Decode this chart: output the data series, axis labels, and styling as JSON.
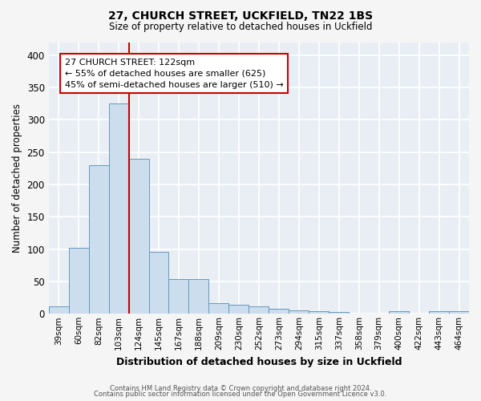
{
  "title1": "27, CHURCH STREET, UCKFIELD, TN22 1BS",
  "title2": "Size of property relative to detached houses in Uckfield",
  "xlabel": "Distribution of detached houses by size in Uckfield",
  "ylabel": "Number of detached properties",
  "bar_labels": [
    "39sqm",
    "60sqm",
    "82sqm",
    "103sqm",
    "124sqm",
    "145sqm",
    "167sqm",
    "188sqm",
    "209sqm",
    "230sqm",
    "252sqm",
    "273sqm",
    "294sqm",
    "315sqm",
    "337sqm",
    "358sqm",
    "379sqm",
    "400sqm",
    "422sqm",
    "443sqm",
    "464sqm"
  ],
  "bar_values": [
    12,
    102,
    230,
    325,
    240,
    96,
    54,
    54,
    16,
    14,
    12,
    8,
    5,
    4,
    3,
    0,
    0,
    4,
    0,
    4,
    4
  ],
  "bar_color": "#ccdded",
  "bar_edge_color": "#6699bb",
  "vline_color": "#cc0000",
  "annotation_text": "27 CHURCH STREET: 122sqm\n← 55% of detached houses are smaller (625)\n45% of semi-detached houses are larger (510) →",
  "annotation_box_color": "#ffffff",
  "annotation_box_edge": "#cc0000",
  "ylim": [
    0,
    420
  ],
  "yticks": [
    0,
    50,
    100,
    150,
    200,
    250,
    300,
    350,
    400
  ],
  "background_color": "#e8eef4",
  "grid_color": "#ffffff",
  "footer1": "Contains HM Land Registry data © Crown copyright and database right 2024.",
  "footer2": "Contains public sector information licensed under the Open Government Licence v3.0."
}
